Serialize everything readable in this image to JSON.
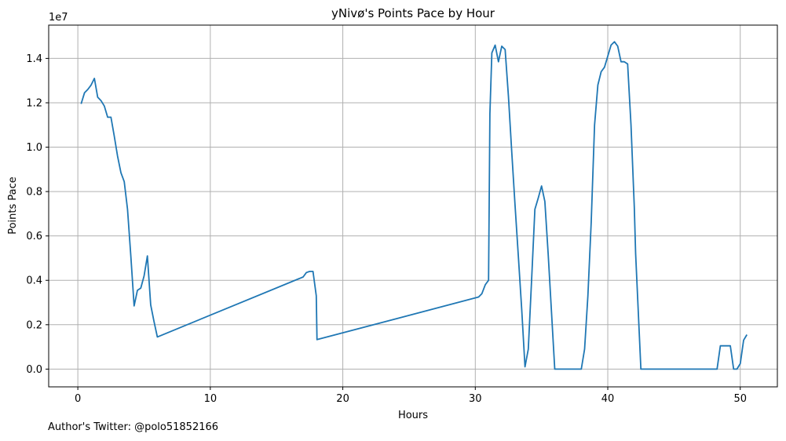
{
  "footer": "Author's Twitter: @polo51852166",
  "chart_data": {
    "type": "line",
    "title": "yNivø's Points Pace by Hour",
    "xlabel": "Hours",
    "ylabel": "Points Pace",
    "offset_label": "1e7",
    "xlim": [
      -2.2,
      52.8
    ],
    "ylim": [
      -0.08,
      1.55
    ],
    "xticks": [
      0,
      10,
      20,
      30,
      40,
      50
    ],
    "yticks": [
      0.0,
      0.2,
      0.4,
      0.6,
      0.8,
      1.0,
      1.2,
      1.4
    ],
    "ytick_labels": [
      "0.0",
      "0.2",
      "0.4",
      "0.6",
      "0.8",
      "1.0",
      "1.2",
      "1.4"
    ],
    "grid": true,
    "line_color": "#1f77b4",
    "series": [
      {
        "x": [
          0.25,
          0.5,
          0.75,
          1.0,
          1.25,
          1.5,
          1.75,
          2.0,
          2.25,
          2.5,
          2.75,
          3.0,
          3.25,
          3.5,
          3.75,
          4.0,
          4.25,
          4.5,
          4.75,
          5.0,
          5.25,
          5.5,
          5.75,
          6.0,
          17.0,
          17.25,
          17.5,
          17.75,
          18.0,
          18.05,
          30.25,
          30.5,
          30.75,
          31.0,
          31.1,
          31.25,
          31.5,
          31.75,
          32.0,
          32.25,
          32.5,
          32.75,
          33.0,
          33.25,
          33.5,
          33.75,
          34.0,
          34.25,
          34.5,
          34.75,
          35.0,
          35.25,
          35.5,
          35.75,
          36.0,
          36.5,
          37.0,
          37.5,
          38.0,
          38.25,
          38.5,
          38.75,
          39.0,
          39.25,
          39.5,
          39.75,
          40.0,
          40.25,
          40.5,
          40.75,
          41.0,
          41.25,
          41.5,
          41.75,
          42.0,
          42.1,
          42.5,
          44.0,
          46.0,
          48.25,
          48.5,
          48.75,
          49.0,
          49.25,
          49.5,
          49.75,
          50.0,
          50.25,
          50.5
        ],
        "y": [
          1.195,
          1.245,
          1.26,
          1.28,
          1.31,
          1.225,
          1.21,
          1.185,
          1.135,
          1.135,
          1.05,
          0.96,
          0.885,
          0.845,
          0.72,
          0.51,
          0.285,
          0.355,
          0.365,
          0.42,
          0.51,
          0.29,
          0.215,
          0.145,
          0.415,
          0.435,
          0.44,
          0.44,
          0.33,
          0.133,
          0.325,
          0.34,
          0.38,
          0.4,
          1.15,
          1.425,
          1.46,
          1.385,
          1.455,
          1.44,
          1.23,
          0.98,
          0.74,
          0.51,
          0.27,
          0.01,
          0.09,
          0.4,
          0.72,
          0.77,
          0.825,
          0.755,
          0.52,
          0.26,
          0.0,
          0.0,
          0.0,
          0.0,
          0.0,
          0.09,
          0.33,
          0.66,
          1.1,
          1.28,
          1.34,
          1.36,
          1.41,
          1.46,
          1.475,
          1.455,
          1.385,
          1.385,
          1.375,
          1.1,
          0.73,
          0.52,
          0.0,
          0.0,
          0.0,
          0.0,
          0.105,
          0.105,
          0.105,
          0.105,
          0.0,
          0.0,
          0.025,
          0.13,
          0.155
        ]
      }
    ]
  }
}
